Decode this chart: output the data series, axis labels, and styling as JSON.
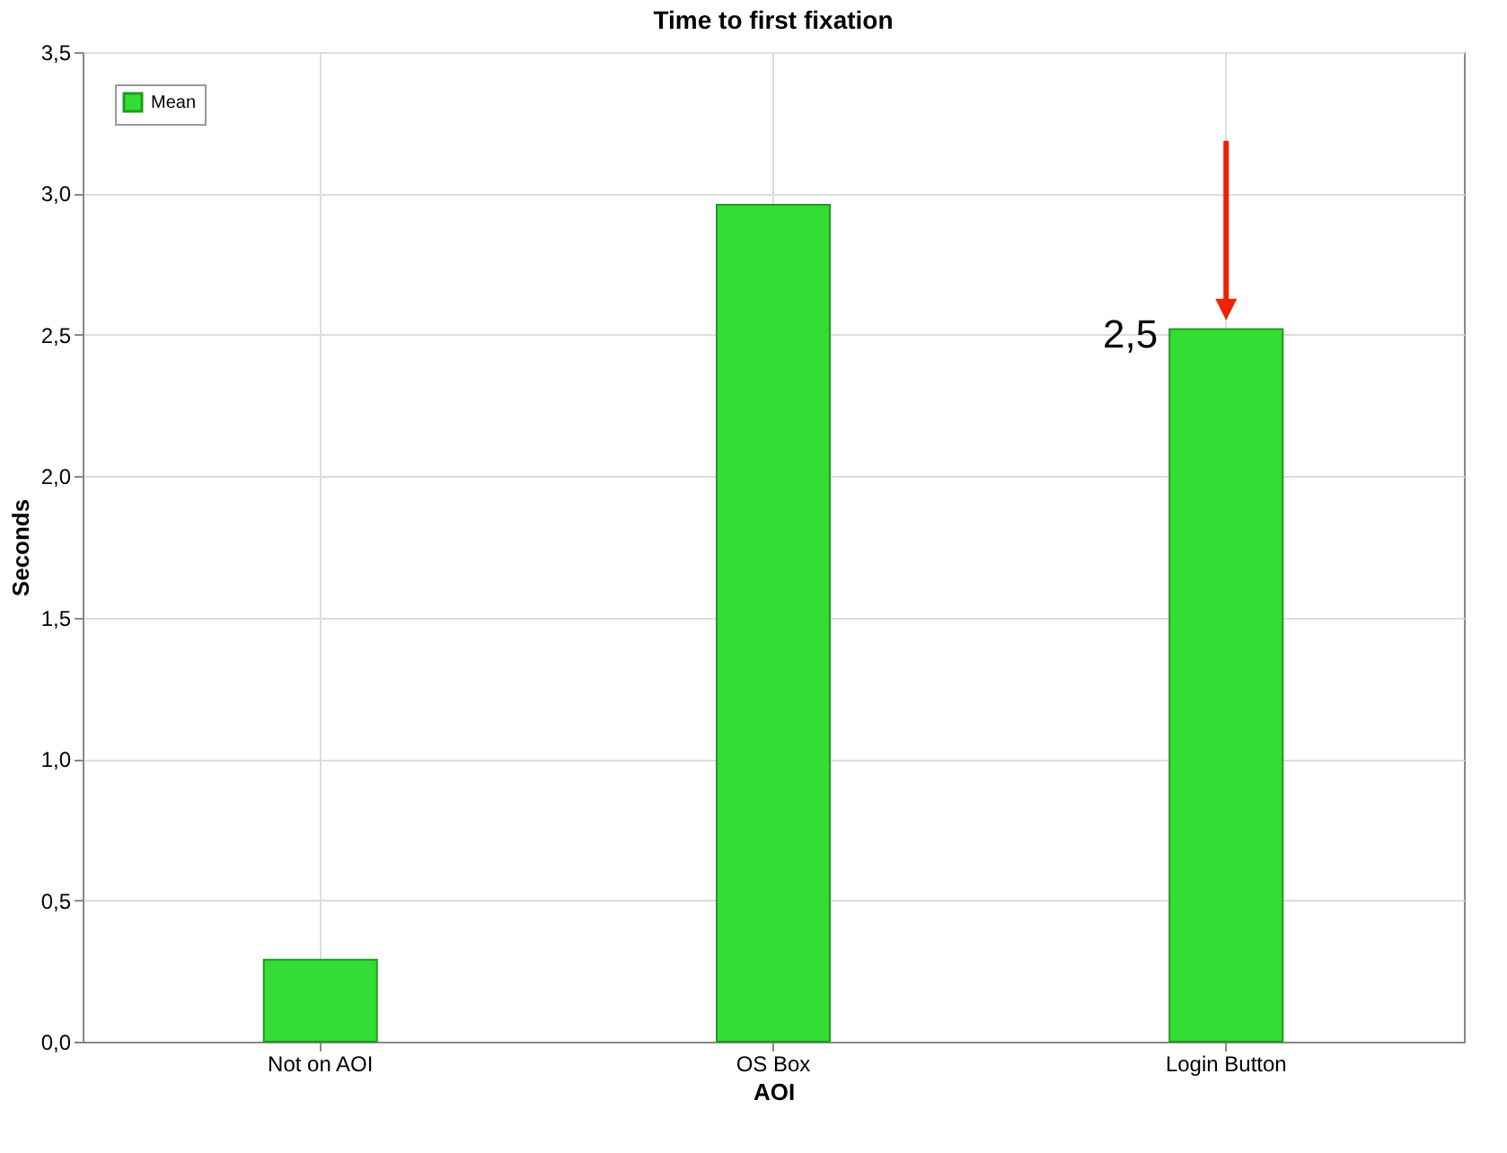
{
  "chart_data": {
    "type": "bar",
    "title": "Time to first fixation",
    "xlabel": "AOI",
    "ylabel": "Seconds",
    "categories": [
      "Not on AOI",
      "OS Box",
      "Login Button"
    ],
    "series": [
      {
        "name": "Mean",
        "color": "#33dd33",
        "values": [
          0.29,
          2.96,
          2.52
        ]
      }
    ],
    "ylim": [
      0,
      3.5
    ],
    "yticks": [
      {
        "value": 0,
        "label": "0,0"
      },
      {
        "value": 0.5,
        "label": "0,5"
      },
      {
        "value": 1,
        "label": "1,0"
      },
      {
        "value": 1.5,
        "label": "1,5"
      },
      {
        "value": 2,
        "label": "2,0"
      },
      {
        "value": 2.5,
        "label": "2,5"
      },
      {
        "value": 3,
        "label": "3,0"
      },
      {
        "value": 3.5,
        "label": "3,5"
      }
    ],
    "grid": true,
    "legend": "top left",
    "annotations": [
      {
        "text": "2,5",
        "x": "Login Button",
        "y": 2.5
      }
    ]
  }
}
